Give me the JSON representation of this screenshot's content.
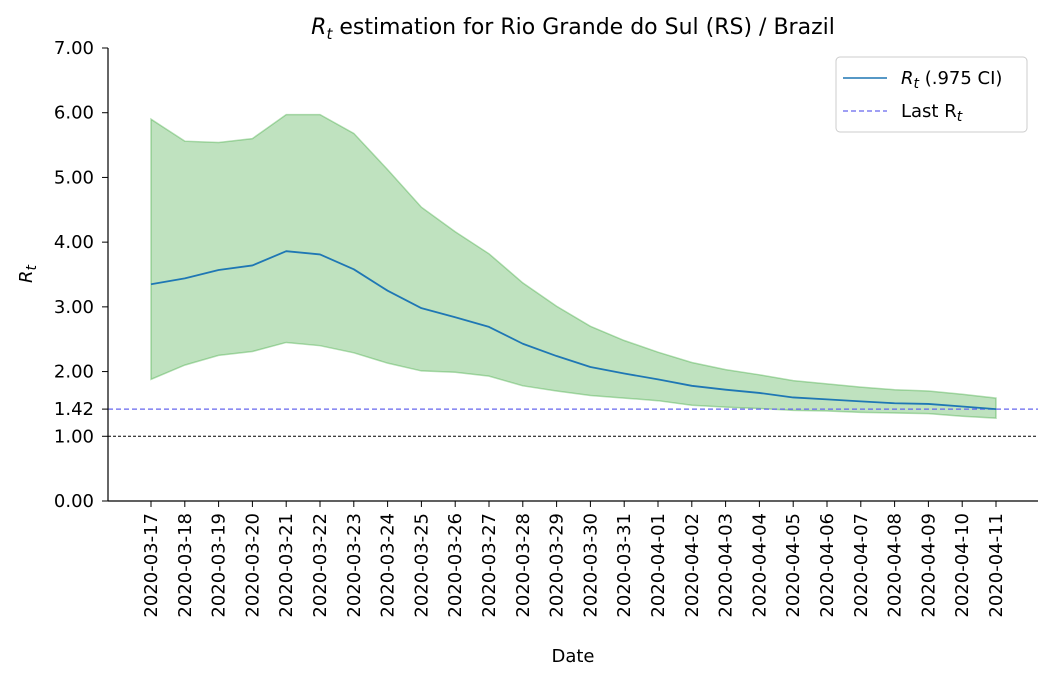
{
  "chart_data": {
    "type": "line",
    "title_main": "R",
    "title_sub": "t",
    "title_rest": " estimation for Rio Grande do Sul (RS) / Brazil",
    "xlabel": "Date",
    "ylabel_main": "R",
    "ylabel_sub": "t",
    "ylim": [
      0,
      7
    ],
    "y_ticks": [
      "0.00",
      "1.00",
      "1.42",
      "2.00",
      "3.00",
      "4.00",
      "5.00",
      "6.00",
      "7.00"
    ],
    "y_tick_values": [
      0,
      1,
      1.42,
      2,
      3,
      4,
      5,
      6,
      7
    ],
    "x": [
      "2020-03-17",
      "2020-03-18",
      "2020-03-19",
      "2020-03-20",
      "2020-03-21",
      "2020-03-22",
      "2020-03-23",
      "2020-03-24",
      "2020-03-25",
      "2020-03-26",
      "2020-03-27",
      "2020-03-28",
      "2020-03-29",
      "2020-03-30",
      "2020-03-31",
      "2020-04-01",
      "2020-04-02",
      "2020-04-03",
      "2020-04-04",
      "2020-04-05",
      "2020-04-06",
      "2020-04-07",
      "2020-04-08",
      "2020-04-09",
      "2020-04-10",
      "2020-04-11"
    ],
    "series": [
      {
        "values": [
          3.35,
          3.44,
          3.57,
          3.64,
          3.86,
          3.81,
          3.58,
          3.25,
          2.98,
          2.84,
          2.69,
          2.43,
          2.24,
          2.07,
          1.97,
          1.88,
          1.78,
          1.72,
          1.67,
          1.6,
          1.57,
          1.54,
          1.51,
          1.5,
          1.46,
          1.42
        ],
        "color": "#1f77b4"
      }
    ],
    "ci_lower": [
      1.88,
      2.1,
      2.25,
      2.31,
      2.45,
      2.4,
      2.29,
      2.13,
      2.01,
      1.99,
      1.93,
      1.78,
      1.7,
      1.63,
      1.59,
      1.55,
      1.48,
      1.45,
      1.43,
      1.4,
      1.39,
      1.37,
      1.36,
      1.35,
      1.31,
      1.28
    ],
    "ci_upper": [
      5.9,
      5.56,
      5.54,
      5.6,
      5.97,
      5.97,
      5.68,
      5.12,
      4.54,
      4.16,
      3.82,
      3.37,
      3.01,
      2.7,
      2.48,
      2.3,
      2.14,
      2.03,
      1.95,
      1.86,
      1.81,
      1.76,
      1.72,
      1.7,
      1.65,
      1.59
    ],
    "ci_color": "#2ca02c",
    "last_rt": 1.42,
    "last_rt_color": "#6666ee",
    "baseline": 1.0,
    "legend": {
      "position": "top-right",
      "entries": [
        {
          "main": "R",
          "sub": "t",
          "rest": " (.975 CI)",
          "style": "solid",
          "color": "#1f77b4"
        },
        {
          "main": "Last R",
          "sub": "t",
          "rest": "",
          "style": "dashed",
          "color": "#6666ee"
        }
      ]
    },
    "grid": false
  }
}
